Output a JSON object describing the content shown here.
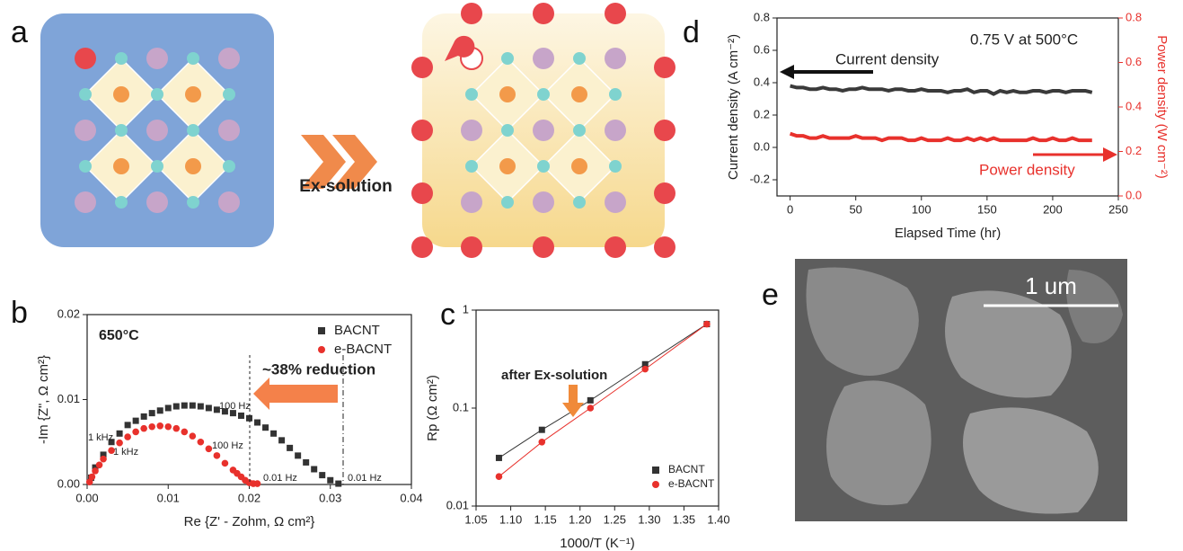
{
  "panel_labels": [
    "a",
    "b",
    "c",
    "d",
    "e"
  ],
  "diagram": {
    "label": "Ex-solution"
  },
  "image": {
    "scale_bar": "1 um"
  },
  "chart_data": [
    {
      "type": "scatter",
      "xlabel": "Re {Z' - Zohm, Ω cm²}",
      "ylabel": "-Im {Z\", Ω cm²}",
      "xlim": [
        0,
        0.04
      ],
      "xticks": [
        {
          "value": 0,
          "label": "0.00"
        },
        0.01,
        0.02,
        0.03,
        0.04
      ],
      "ylim": [
        0,
        0.02
      ],
      "yticks": [
        {
          "value": 0,
          "label": "0.00"
        },
        0.01,
        0.02
      ],
      "legend": "upper right",
      "annotations": [
        "650°C",
        "~38% reduction",
        "1 kHz",
        "1 kHz",
        "100 Hz",
        "100 Hz",
        "0.01 Hz",
        "0.01 Hz"
      ],
      "series": [
        {
          "name": "BACNT",
          "color": "#333333",
          "marker": "square",
          "x": [
            0.0005,
            0.001,
            0.002,
            0.003,
            0.004,
            0.005,
            0.006,
            0.007,
            0.008,
            0.009,
            0.01,
            0.011,
            0.012,
            0.013,
            0.014,
            0.015,
            0.016,
            0.017,
            0.018,
            0.019,
            0.02,
            0.021,
            0.022,
            0.023,
            0.024,
            0.025,
            0.026,
            0.027,
            0.028,
            0.029,
            0.03,
            0.031
          ],
          "values": [
            0.0008,
            0.002,
            0.0035,
            0.005,
            0.006,
            0.007,
            0.0075,
            0.008,
            0.0084,
            0.0087,
            0.009,
            0.0092,
            0.0093,
            0.0093,
            0.0092,
            0.009,
            0.0088,
            0.0086,
            0.0084,
            0.0081,
            0.0078,
            0.0073,
            0.0067,
            0.006,
            0.0052,
            0.0043,
            0.0034,
            0.0026,
            0.0018,
            0.0011,
            0.0005,
            0.0001
          ]
        },
        {
          "name": "e-BACNT",
          "color": "#e8312c",
          "marker": "circle",
          "x": [
            0.0003,
            0.0006,
            0.001,
            0.0015,
            0.002,
            0.003,
            0.004,
            0.005,
            0.006,
            0.007,
            0.008,
            0.009,
            0.01,
            0.011,
            0.012,
            0.013,
            0.014,
            0.015,
            0.016,
            0.017,
            0.018,
            0.0185,
            0.019,
            0.0195,
            0.02,
            0.0205,
            0.021
          ],
          "values": [
            0.0003,
            0.0009,
            0.0016,
            0.0023,
            0.003,
            0.004,
            0.0049,
            0.0056,
            0.0062,
            0.0066,
            0.0068,
            0.0069,
            0.0068,
            0.0066,
            0.0062,
            0.0057,
            0.005,
            0.0042,
            0.0034,
            0.0025,
            0.0017,
            0.0013,
            0.0009,
            0.0005,
            0.0002,
            0.0001,
            0.0001
          ]
        }
      ]
    },
    {
      "type": "scatter",
      "lines": true,
      "log_y": true,
      "xlabel": "1000/T (K⁻¹)",
      "ylabel": "Rp (Ω cm²)",
      "xlim": [
        1.05,
        1.4
      ],
      "xticks": [
        1.05,
        {
          "value": 1.1,
          "label": "1.10"
        },
        1.15,
        {
          "value": 1.2,
          "label": "1.20"
        },
        1.25,
        {
          "value": 1.3,
          "label": "1.30"
        },
        1.35,
        {
          "value": 1.4,
          "label": "1.40"
        }
      ],
      "ylim": [
        0.01,
        1
      ],
      "yticks": [
        0.01,
        0.1,
        1
      ],
      "legend": "lower right",
      "annotations": [
        "after Ex-solution"
      ],
      "x": [
        1.083,
        1.145,
        1.215,
        1.294,
        1.383
      ],
      "series": [
        {
          "name": "BACNT",
          "color": "#333333",
          "marker": "square",
          "values": [
            0.031,
            0.06,
            0.12,
            0.28,
            0.72
          ]
        },
        {
          "name": "e-BACNT",
          "color": "#e8312c",
          "marker": "circle",
          "values": [
            0.02,
            0.045,
            0.1,
            0.25,
            0.72
          ]
        }
      ]
    },
    {
      "type": "line",
      "xlabel": "Elapsed Time (hr)",
      "ylabel": "Current density (A cm⁻²)",
      "y2label": "Power density (W cm⁻²)",
      "xlim": [
        -10,
        250
      ],
      "xticks": [
        0,
        50,
        100,
        150,
        200,
        250
      ],
      "ylim": [
        -0.3,
        0.8
      ],
      "yticks": [
        -0.2,
        {
          "value": 0,
          "label": "0.0"
        },
        0.2,
        0.4,
        0.6,
        0.8
      ],
      "y2lim": [
        0,
        0.8
      ],
      "y2ticks": [
        {
          "value": 0,
          "label": "0.0"
        },
        0.2,
        0.4,
        0.6,
        0.8
      ],
      "annotations": [
        "0.75 V at 500°C",
        "Current density",
        "Power density"
      ],
      "x": [
        0,
        5,
        10,
        15,
        20,
        25,
        30,
        35,
        40,
        45,
        50,
        55,
        60,
        65,
        70,
        75,
        80,
        85,
        90,
        95,
        100,
        105,
        110,
        115,
        120,
        125,
        130,
        135,
        140,
        145,
        150,
        155,
        160,
        165,
        170,
        175,
        180,
        185,
        190,
        195,
        200,
        205,
        210,
        215,
        220,
        225,
        230
      ],
      "series": [
        {
          "name": "Current density",
          "color": "#3a3a3a",
          "values": [
            0.38,
            0.37,
            0.37,
            0.36,
            0.36,
            0.37,
            0.36,
            0.36,
            0.35,
            0.36,
            0.36,
            0.37,
            0.36,
            0.36,
            0.36,
            0.35,
            0.36,
            0.36,
            0.35,
            0.35,
            0.36,
            0.35,
            0.35,
            0.35,
            0.34,
            0.35,
            0.35,
            0.36,
            0.34,
            0.35,
            0.35,
            0.33,
            0.35,
            0.34,
            0.35,
            0.34,
            0.34,
            0.35,
            0.35,
            0.34,
            0.35,
            0.35,
            0.34,
            0.35,
            0.35,
            0.35,
            0.34
          ]
        },
        {
          "name": "Power density",
          "color": "#e8312c",
          "axis": "y2",
          "values": [
            0.28,
            0.27,
            0.27,
            0.26,
            0.26,
            0.27,
            0.26,
            0.26,
            0.26,
            0.26,
            0.27,
            0.26,
            0.26,
            0.26,
            0.25,
            0.26,
            0.26,
            0.26,
            0.25,
            0.25,
            0.26,
            0.25,
            0.25,
            0.25,
            0.26,
            0.25,
            0.25,
            0.26,
            0.25,
            0.26,
            0.25,
            0.26,
            0.25,
            0.25,
            0.25,
            0.25,
            0.25,
            0.26,
            0.25,
            0.25,
            0.26,
            0.25,
            0.25,
            0.26,
            0.25,
            0.25,
            0.25
          ]
        }
      ]
    }
  ]
}
